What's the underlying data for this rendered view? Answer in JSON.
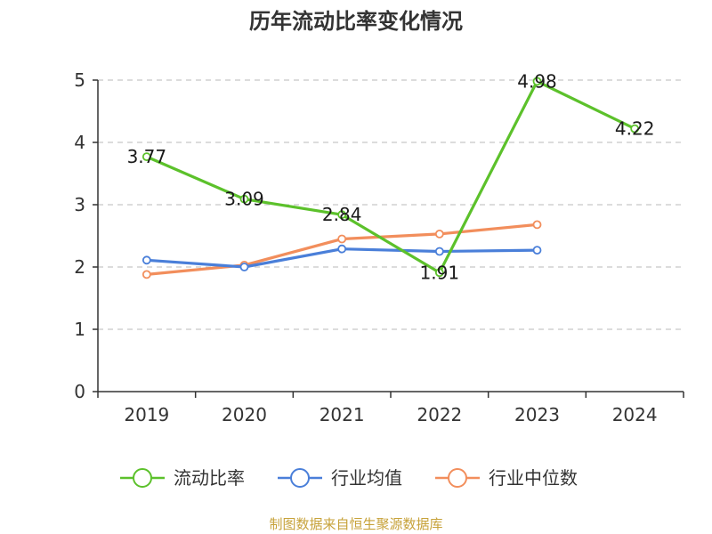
{
  "title": "历年流动比率变化情况",
  "source": "制图数据来自恒生聚源数据库",
  "chart_data": {
    "type": "line",
    "title": "历年流动比率变化情况",
    "xlabel": "",
    "ylabel": "",
    "categories": [
      "2019",
      "2020",
      "2021",
      "2022",
      "2023",
      "2024"
    ],
    "ylim": [
      0,
      5
    ],
    "yticks": [
      0,
      1,
      2,
      3,
      4,
      5
    ],
    "grid": true,
    "legend_position": "bottom",
    "series": [
      {
        "name": "流动比率",
        "color": "#5cc12b",
        "values": [
          3.77,
          3.09,
          2.84,
          1.91,
          4.98,
          4.22
        ],
        "labels": [
          "3.77",
          "3.09",
          "2.84",
          "1.91",
          "4.98",
          "4.22"
        ]
      },
      {
        "name": "行业均值",
        "color": "#4a7fd9",
        "values": [
          2.11,
          2.0,
          2.29,
          2.25,
          2.27,
          null
        ]
      },
      {
        "name": "行业中位数",
        "color": "#f28e5c",
        "values": [
          1.88,
          2.03,
          2.45,
          2.53,
          2.68,
          null
        ]
      }
    ]
  }
}
